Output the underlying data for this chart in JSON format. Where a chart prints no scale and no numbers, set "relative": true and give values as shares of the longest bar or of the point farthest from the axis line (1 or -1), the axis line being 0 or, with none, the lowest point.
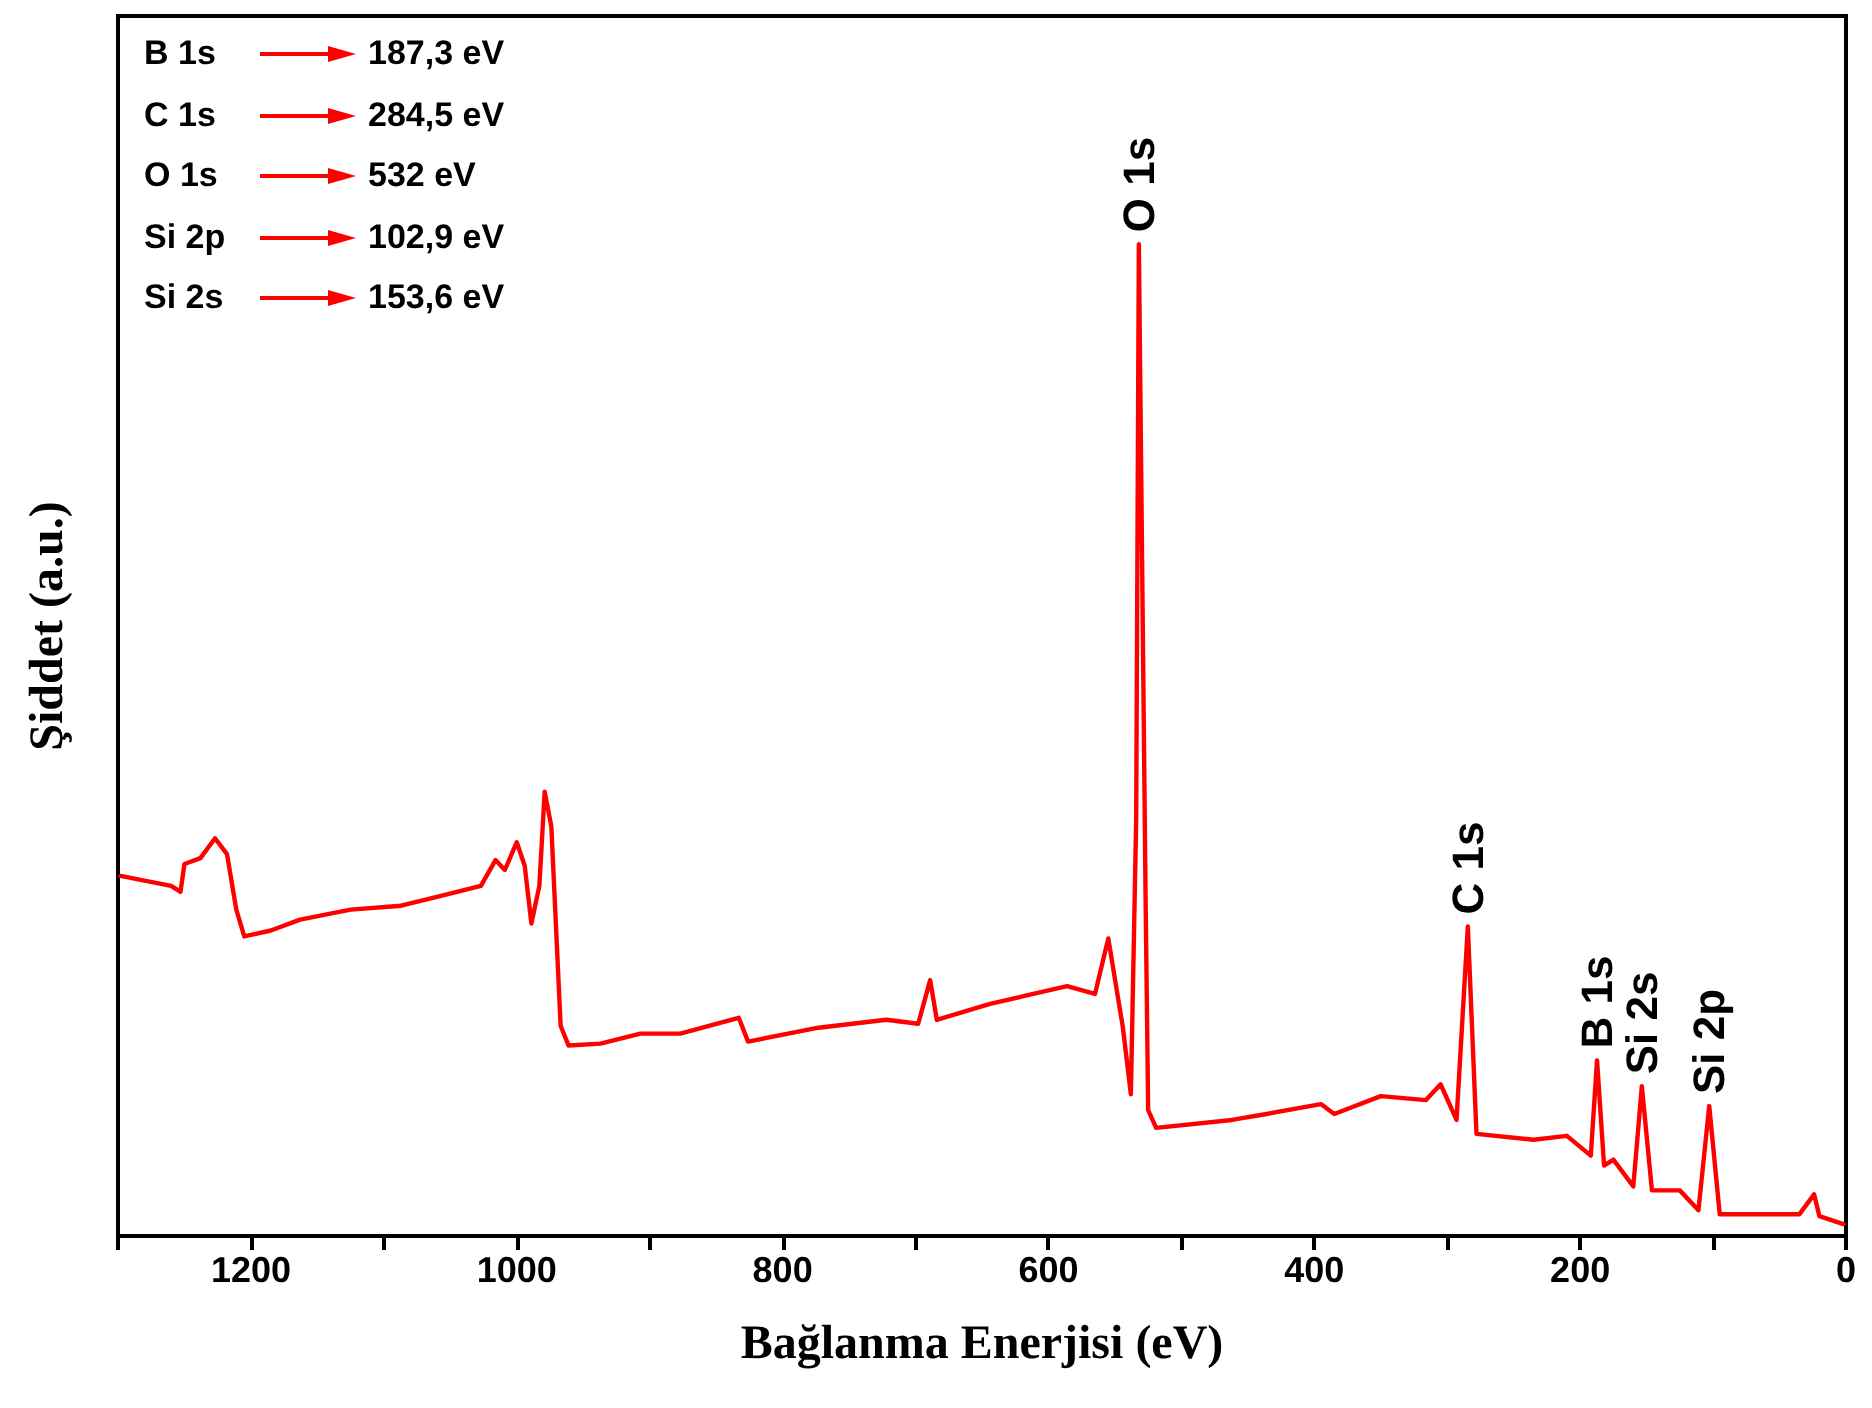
{
  "chart_data": {
    "type": "line",
    "xlabel": "Bağlanma Enerjisi (eV)",
    "ylabel": "Şiddet (a.u.)",
    "relative": true,
    "xlim": [
      1300,
      0
    ],
    "xticks": [
      {
        "value": 1300,
        "label": null
      },
      1200,
      {
        "value": 1100,
        "label": null
      },
      1000,
      {
        "value": 900,
        "label": null
      },
      800,
      {
        "value": 700,
        "label": null
      },
      600,
      {
        "value": 500,
        "label": null
      },
      400,
      {
        "value": 300,
        "label": null
      },
      200,
      {
        "value": 100,
        "label": null
      },
      0
    ],
    "grid": false,
    "marker": "none",
    "line_style": "solid",
    "series": [
      {
        "color": "#ff0000",
        "x": [
          1298,
          1283,
          1260,
          1253,
          1250,
          1238,
          1227,
          1218,
          1211,
          1205,
          1185,
          1163,
          1125,
          1087,
          1057,
          1027,
          1016,
          1009,
          1000,
          994,
          989,
          983,
          979,
          974,
          967,
          961,
          937,
          907,
          877,
          833,
          826,
          773,
          722,
          698,
          689,
          684,
          669,
          644,
          618,
          586,
          565,
          555,
          544,
          538,
          534,
          532,
          527,
          525,
          519,
          462,
          436,
          395,
          385,
          350,
          316,
          305,
          293,
          284.5,
          278,
          235,
          210,
          192,
          187.3,
          182,
          175,
          160,
          153.6,
          146,
          125,
          111,
          102.9,
          95,
          35,
          24,
          20,
          2
        ],
        "values": [
          0.363,
          0.359,
          0.353,
          0.347,
          0.375,
          0.381,
          0.401,
          0.385,
          0.329,
          0.302,
          0.308,
          0.319,
          0.329,
          0.333,
          0.343,
          0.353,
          0.379,
          0.369,
          0.397,
          0.373,
          0.315,
          0.353,
          0.448,
          0.413,
          0.212,
          0.192,
          0.194,
          0.204,
          0.204,
          0.22,
          0.196,
          0.21,
          0.218,
          0.214,
          0.258,
          0.218,
          0.224,
          0.234,
          0.242,
          0.252,
          0.244,
          0.3,
          0.21,
          0.143,
          0.42,
          1.0,
          0.349,
          0.127,
          0.109,
          0.117,
          0.123,
          0.133,
          0.123,
          0.141,
          0.137,
          0.153,
          0.117,
          0.312,
          0.103,
          0.097,
          0.101,
          0.081,
          0.177,
          0.071,
          0.077,
          0.05,
          0.151,
          0.046,
          0.046,
          0.026,
          0.131,
          0.022,
          0.022,
          0.042,
          0.02,
          0.012
        ]
      }
    ],
    "annotations": [
      "B 1s",
      "187,3 eV",
      "C 1s",
      "284,5 eV",
      "O 1s",
      "532 eV",
      "Si 2p",
      "102,9 eV",
      "Si 2s",
      "153,6 eV",
      {
        "text": "O 1s",
        "x": 532,
        "y": 1.0
      },
      {
        "text": "C 1s",
        "x": 284.5,
        "y": 0.312
      },
      {
        "text": "B 1s",
        "x": 187.3,
        "y": 0.177
      },
      {
        "text": "Si 2s",
        "x": 153.6,
        "y": 0.151
      },
      {
        "text": "Si 2p",
        "x": 102.9,
        "y": 0.131
      }
    ]
  }
}
